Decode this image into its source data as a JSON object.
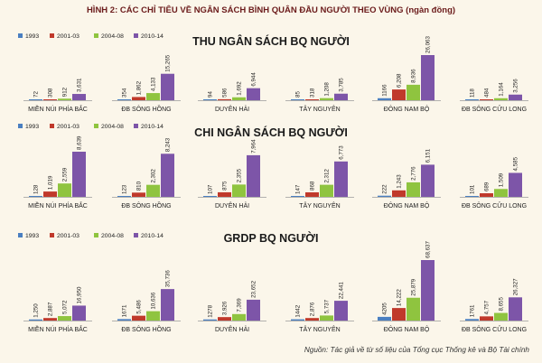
{
  "figure": {
    "title": "HÌNH 2: CÁC CHỈ TIÊU VỀ NGÂN SÁCH BÌNH QUÂN ĐẦU NGƯỜI THEO VÙNG (ngàn đồng)",
    "source": "Nguồn: Tác giả về từ số liệu của Tổng cục Thống kê và Bộ Tài chính"
  },
  "colors": {
    "1993": "#4a7fc1",
    "2001-03": "#c0392b",
    "2004-08": "#8fc43f",
    "2010-14": "#7d55a8"
  },
  "chart_data": [
    {
      "type": "bar",
      "title": "THU NGÂN SÁCH BQ NGƯỜI",
      "categories": [
        "MIỀN NÚI PHÍA BẮC",
        "ĐB SÔNG HỒNG",
        "DUYÊN HẢI",
        "TÂY NGUYÊN",
        "ĐÔNG NAM BỘ",
        "ĐB SÔNG CỬU LONG"
      ],
      "series": [
        {
          "name": "1993",
          "values": [
            72,
            354,
            94,
            85,
            1166,
            118
          ],
          "labels": [
            "72",
            "354",
            "94",
            "85",
            "1166",
            "118"
          ]
        },
        {
          "name": "2001-03",
          "values": [
            308,
            1862,
            586,
            318,
            6208,
            484
          ],
          "labels": [
            "308",
            "1,862",
            "586",
            "318",
            "6,208",
            "484"
          ]
        },
        {
          "name": "2004-08",
          "values": [
            912,
            4133,
            1692,
            1208,
            8936,
            1164
          ],
          "labels": [
            "912",
            "4,133",
            "1,692",
            "1,208",
            "8,936",
            "1,164"
          ]
        },
        {
          "name": "2010-14",
          "values": [
            3631,
            15265,
            6944,
            3785,
            26063,
            3256
          ],
          "labels": [
            "3,631",
            "15,265",
            "6,944",
            "3,785",
            "26,063",
            "3,256"
          ]
        }
      ],
      "legend": "top-left"
    },
    {
      "type": "bar",
      "title": "CHI NGÂN SÁCH BQ NGƯỜI",
      "categories": [
        "MIỀN NÚI PHÍA BẮC",
        "ĐB SÔNG HỒNG",
        "DUYÊN HẢI",
        "TÂY NGUYÊN",
        "ĐÔNG NAM BỘ",
        "ĐB SÔNG CỬU LONG"
      ],
      "series": [
        {
          "name": "1993",
          "values": [
            128,
            123,
            107,
            147,
            222,
            101
          ],
          "labels": [
            "128",
            "123",
            "107",
            "147",
            "222",
            "101"
          ]
        },
        {
          "name": "2001-03",
          "values": [
            1019,
            810,
            875,
            868,
            1243,
            689
          ],
          "labels": [
            "1,019",
            "810",
            "875",
            "868",
            "1,243",
            "689"
          ]
        },
        {
          "name": "2004-08",
          "values": [
            2559,
            2302,
            2355,
            2312,
            2776,
            1509
          ],
          "labels": [
            "2,559",
            "2,302",
            "2,355",
            "2,312",
            "2,776",
            "1,509"
          ]
        },
        {
          "name": "2010-14",
          "values": [
            8639,
            8243,
            7964,
            6773,
            6151,
            4585
          ],
          "labels": [
            "8,639",
            "8,243",
            "7,964",
            "6,773",
            "6,151",
            "4,585"
          ]
        }
      ],
      "legend": "top-left"
    },
    {
      "type": "bar",
      "title": "GRDP BQ NGƯỜI",
      "categories": [
        "MIỀN NÚI PHÍA BẮC",
        "ĐB SÔNG HỒNG",
        "DUYÊN HẢI",
        "TÂY NGUYÊN",
        "ĐÔNG NAM BỘ",
        "ĐB SÔNG CỬU LONG"
      ],
      "series": [
        {
          "name": "1993",
          "values": [
            1250,
            1671,
            1278,
            1442,
            4205,
            1761
          ],
          "labels": [
            "1,250",
            "1671",
            "1278",
            "1442",
            "4205",
            "1761"
          ]
        },
        {
          "name": "2001-03",
          "values": [
            2887,
            5486,
            3926,
            2876,
            14222,
            4757
          ],
          "labels": [
            "2,887",
            "5,486",
            "3,926",
            "2,876",
            "14,222",
            "4,757"
          ]
        },
        {
          "name": "2004-08",
          "values": [
            5072,
            10636,
            7369,
            5737,
            25879,
            8655
          ],
          "labels": [
            "5,072",
            "10,636",
            "7,369",
            "5,737",
            "25,879",
            "8,655"
          ]
        },
        {
          "name": "2010-14",
          "values": [
            16950,
            35736,
            23652,
            22441,
            68637,
            26327
          ],
          "labels": [
            "16,950",
            "35,736",
            "23,652",
            "22,441",
            "68,637",
            "26,327"
          ]
        }
      ],
      "legend": "top-left"
    }
  ]
}
